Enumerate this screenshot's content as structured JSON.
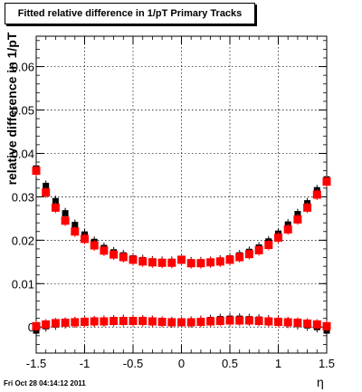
{
  "title": "Fitted relative difference in 1/pT  Primary Tracks",
  "footer": {
    "timestamp": "Fri Oct 28 04:14:12 2011"
  },
  "chart_data": {
    "type": "scatter",
    "title": "Fitted relative difference in 1/pT  Primary Tracks",
    "xlabel": "η",
    "ylabel": "relative difference in 1/pT",
    "xlim": [
      -1.5,
      1.5
    ],
    "ylim": [
      -0.006,
      0.067
    ],
    "xticks": [
      -1.5,
      -1,
      -0.5,
      0,
      0.5,
      1,
      1.5
    ],
    "xtick_labels": [
      "-1.5",
      "-1",
      "-0.5",
      "0",
      "0.5",
      "1",
      "1.5"
    ],
    "yticks": [
      0,
      0.01,
      0.02,
      0.03,
      0.04,
      0.05,
      0.06
    ],
    "ytick_labels": [
      "0",
      "0.01",
      "0.02",
      "0.03",
      "0.04",
      "0.05",
      "0.06"
    ],
    "grid": true,
    "series": [
      {
        "color": "#000000",
        "marker": "square",
        "role": "width",
        "x": [
          -1.5,
          -1.4,
          -1.3,
          -1.2,
          -1.1,
          -1.0,
          -0.9,
          -0.8,
          -0.7,
          -0.6,
          -0.5,
          -0.4,
          -0.3,
          -0.2,
          -0.1,
          0.0,
          0.1,
          0.2,
          0.3,
          0.4,
          0.5,
          0.6,
          0.7,
          0.8,
          0.9,
          1.0,
          1.1,
          1.2,
          1.3,
          1.4,
          1.5
        ],
        "y": [
          0.0365,
          0.0325,
          0.029,
          0.0262,
          0.0235,
          0.0213,
          0.0196,
          0.0182,
          0.0172,
          0.0165,
          0.0158,
          0.0154,
          0.0151,
          0.015,
          0.015,
          0.0155,
          0.0149,
          0.0149,
          0.015,
          0.0153,
          0.0158,
          0.0165,
          0.0173,
          0.0183,
          0.0197,
          0.0215,
          0.0236,
          0.026,
          0.0285,
          0.0315,
          0.034
        ]
      },
      {
        "color": "#ff0000",
        "marker": "square",
        "role": "width",
        "x": [
          -1.5,
          -1.4,
          -1.3,
          -1.2,
          -1.1,
          -1.0,
          -0.9,
          -0.8,
          -0.7,
          -0.6,
          -0.5,
          -0.4,
          -0.3,
          -0.2,
          -0.1,
          0.0,
          0.1,
          0.2,
          0.3,
          0.4,
          0.5,
          0.6,
          0.7,
          0.8,
          0.9,
          1.0,
          1.1,
          1.2,
          1.3,
          1.4,
          1.5
        ],
        "y": [
          0.036,
          0.031,
          0.0275,
          0.0245,
          0.022,
          0.0203,
          0.0188,
          0.0176,
          0.0167,
          0.0161,
          0.0155,
          0.0151,
          0.0149,
          0.0148,
          0.0148,
          0.0155,
          0.0147,
          0.0147,
          0.0149,
          0.0151,
          0.0155,
          0.0161,
          0.0168,
          0.0177,
          0.0189,
          0.0206,
          0.0225,
          0.0248,
          0.0275,
          0.0305,
          0.0335
        ]
      },
      {
        "color": "#000000",
        "marker": "square",
        "role": "mean",
        "x": [
          -1.5,
          -1.4,
          -1.3,
          -1.2,
          -1.1,
          -1.0,
          -0.9,
          -0.8,
          -0.7,
          -0.6,
          -0.5,
          -0.4,
          -0.3,
          -0.2,
          -0.1,
          0.0,
          0.1,
          0.2,
          0.3,
          0.4,
          0.5,
          0.6,
          0.7,
          0.8,
          0.9,
          1.0,
          1.1,
          1.2,
          1.3,
          1.4,
          1.5
        ],
        "y": [
          -0.0008,
          0.0002,
          0.0006,
          0.0009,
          0.0011,
          0.0012,
          0.0013,
          0.0014,
          0.0015,
          0.0016,
          0.0016,
          0.0015,
          0.0014,
          0.0012,
          0.0011,
          0.0011,
          0.0012,
          0.0014,
          0.0016,
          0.0018,
          0.0019,
          0.0019,
          0.0018,
          0.0017,
          0.0015,
          0.0013,
          0.001,
          0.0007,
          0.0004,
          0.0,
          -0.0008
        ]
      },
      {
        "color": "#ff0000",
        "marker": "square",
        "role": "mean",
        "x": [
          -1.5,
          -1.4,
          -1.3,
          -1.2,
          -1.1,
          -1.0,
          -0.9,
          -0.8,
          -0.7,
          -0.6,
          -0.5,
          -0.4,
          -0.3,
          -0.2,
          -0.1,
          0.0,
          0.1,
          0.2,
          0.3,
          0.4,
          0.5,
          0.6,
          0.7,
          0.8,
          0.9,
          1.0,
          1.1,
          1.2,
          1.3,
          1.4,
          1.5
        ],
        "y": [
          0.0002,
          0.0006,
          0.0009,
          0.001,
          0.0011,
          0.0012,
          0.0013,
          0.0013,
          0.0014,
          0.0014,
          0.0014,
          0.0014,
          0.0013,
          0.0012,
          0.0011,
          0.0011,
          0.0011,
          0.0012,
          0.0013,
          0.0014,
          0.0015,
          0.0015,
          0.0015,
          0.0014,
          0.0013,
          0.0012,
          0.0011,
          0.001,
          0.0008,
          0.0006,
          0.0002
        ]
      }
    ]
  }
}
